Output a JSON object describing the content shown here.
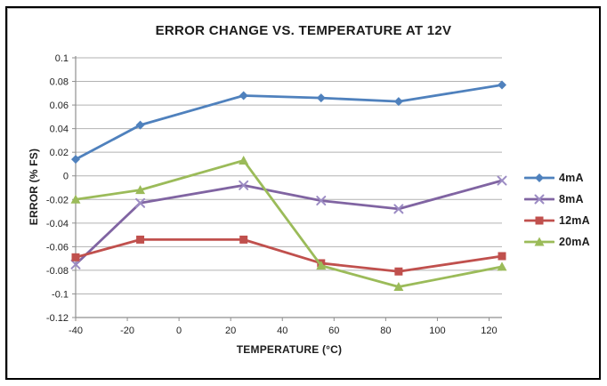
{
  "frame": {
    "border_color": "#000000",
    "background": "#ffffff"
  },
  "chart_data": {
    "type": "line",
    "title": "ERROR CHANGE VS. TEMPERATURE AT 12V",
    "xlabel": "TEMPERATURE (°C)",
    "ylabel": "ERROR (% FS)",
    "xlim": [
      -40,
      125
    ],
    "ylim": [
      -0.12,
      0.1
    ],
    "xticks": [
      -40,
      -20,
      0,
      20,
      40,
      60,
      80,
      100,
      120
    ],
    "xtick_labels": [
      "-40",
      "-20",
      "0",
      "20",
      "40",
      "60",
      "80",
      "100",
      "120"
    ],
    "yticks": [
      0.1,
      0.08,
      0.06,
      0.04,
      0.02,
      0,
      -0.02,
      -0.04,
      -0.06,
      -0.08,
      -0.1,
      -0.12
    ],
    "ytick_labels": [
      "0.1",
      "0.08",
      "0.06",
      "0.04",
      "0.02",
      "0",
      "-0.02",
      "-0.04",
      "-0.06",
      "-0.08",
      "-0.1",
      "-0.12"
    ],
    "grid": true,
    "legend_position": "right",
    "x": [
      -40,
      -15,
      25,
      55,
      85,
      125
    ],
    "series": [
      {
        "name": "4mA",
        "color": "#4F81BD",
        "marker": "diamond",
        "marker_color": "#4F81BD",
        "values": [
          0.014,
          0.043,
          0.068,
          0.066,
          0.063,
          0.077
        ]
      },
      {
        "name": "8mA",
        "color": "#8064A2",
        "marker": "x",
        "marker_color": "#9c8cc4",
        "values": [
          -0.075,
          -0.023,
          -0.008,
          -0.021,
          -0.028,
          -0.004
        ]
      },
      {
        "name": "12mA",
        "color": "#C0504D",
        "marker": "square",
        "marker_color": "#C0504D",
        "values": [
          -0.069,
          -0.054,
          -0.054,
          -0.074,
          -0.081,
          -0.068
        ]
      },
      {
        "name": "20mA",
        "color": "#9BBB59",
        "marker": "triangle",
        "marker_color": "#9BBB59",
        "values": [
          -0.02,
          -0.012,
          0.013,
          -0.076,
          -0.094,
          -0.077
        ]
      }
    ],
    "colors": {
      "gridline": "#b2b2b2",
      "axis": "#8f8f8f",
      "tick_text": "#222222"
    }
  }
}
